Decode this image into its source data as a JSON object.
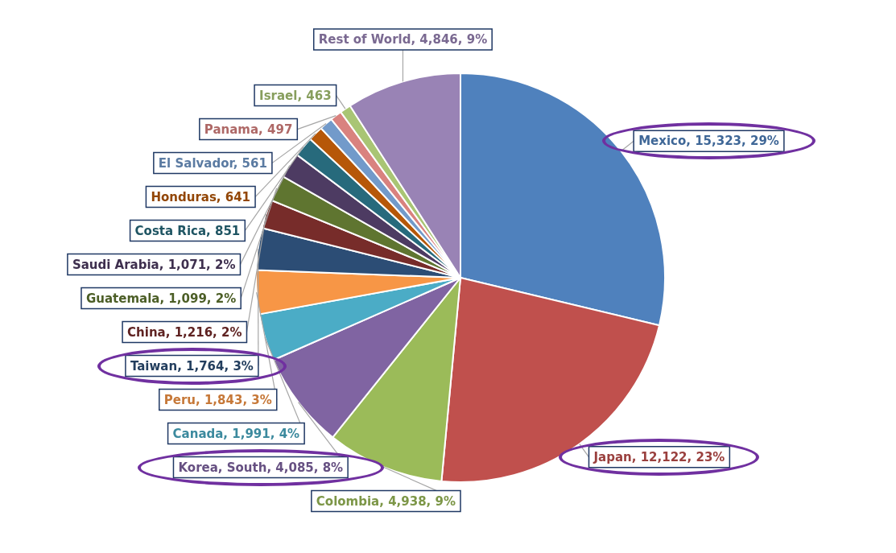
{
  "chart_data": {
    "type": "pie",
    "categories": [
      "Mexico",
      "Japan",
      "Colombia",
      "Korea, South",
      "Canada",
      "Peru",
      "Taiwan",
      "China",
      "Guatemala",
      "Saudi Arabia",
      "Costa Rica",
      "Honduras",
      "El Salvador",
      "Panama",
      "Israel",
      "Rest of World"
    ],
    "values": [
      15323,
      12122,
      4938,
      4085,
      1991,
      1843,
      1764,
      1216,
      1099,
      1071,
      851,
      641,
      561,
      497,
      463,
      4846
    ],
    "value_labels": [
      "15,323, 29%",
      "12,122, 23%",
      "4,938, 9%",
      "4,085, 8%",
      "1,991, 4%",
      "1,843, 3%",
      "1,764, 3%",
      "1,216, 2%",
      "1,099, 2%",
      "1,071, 2%",
      "851",
      "641",
      "561",
      "497",
      "463",
      "4,846, 9%"
    ],
    "colors": [
      "#4f81bd",
      "#c0504d",
      "#9bbb59",
      "#8064a2",
      "#4bacc6",
      "#f79646",
      "#2c4d75",
      "#772c2a",
      "#5f7530",
      "#4d3b62",
      "#276a7c",
      "#b65708",
      "#729aca",
      "#d9827f",
      "#a9c574",
      "#9983b5"
    ],
    "legend": false
  }
}
